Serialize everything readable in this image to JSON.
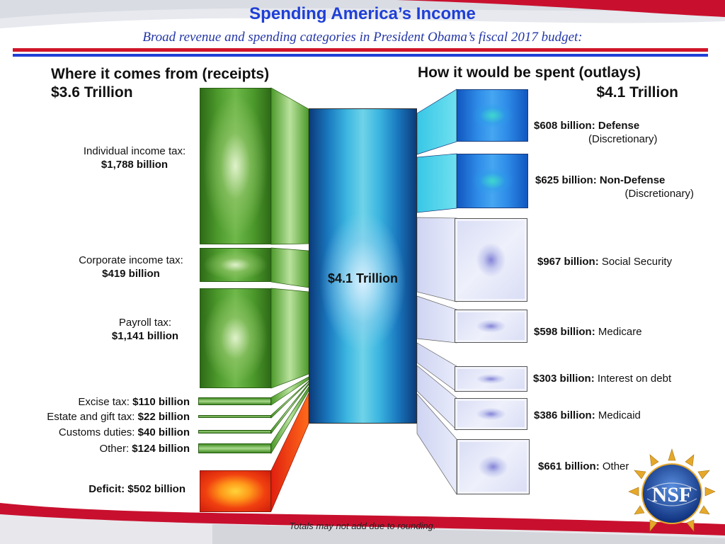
{
  "header": {
    "title": "Spending America’s Income",
    "subtitle": "Broad revenue and spending categories in President Obama’s fiscal 2017 budget:"
  },
  "receipts": {
    "heading": "Where it comes from (receipts)",
    "total": "$3.6 Trillion",
    "items": [
      {
        "label": "Individual income tax:",
        "value": "$1,788 billion"
      },
      {
        "label": "Corporate income tax:",
        "value": "$419 billion"
      },
      {
        "label": "Payroll tax:",
        "value": "$1,141 billion"
      },
      {
        "label": "Excise tax:",
        "value": "$110 billion"
      },
      {
        "label": "Estate and gift tax:",
        "value": "$22 billion"
      },
      {
        "label": "Customs duties:",
        "value": "$40 billion"
      },
      {
        "label": "Other:",
        "value": "$124 billion"
      },
      {
        "label": "Deficit:",
        "value": "$502 billion"
      }
    ]
  },
  "center": {
    "label": "$4.1 Trillion"
  },
  "outlays": {
    "heading": "How it would be spent (outlays)",
    "total": "$4.1 Trillion",
    "items": [
      {
        "value": "$608 billion:",
        "name": "Defense",
        "sub": "(Discretionary)"
      },
      {
        "value": "$625 billion:",
        "name": "Non-Defense",
        "sub": "(Discretionary)"
      },
      {
        "value": "$967 billion:",
        "name": "Social Security"
      },
      {
        "value": "$598 billion:",
        "name": "Medicare"
      },
      {
        "value": "$303 billion:",
        "name": "Interest on debt"
      },
      {
        "value": "$386 billion:",
        "name": "Medicaid"
      },
      {
        "value": "$661 billion:",
        "name": "Other"
      }
    ]
  },
  "footnote": "Totals may not add due to rounding.",
  "logo": {
    "text": "NSF"
  },
  "colors": {
    "title_blue": "#1f3fd6",
    "rule_red": "#d0152a",
    "receipts_green": "#4d9a2c",
    "deficit_red": "#e0301a",
    "center_blue": "#1a7ac0",
    "outlay_blue": "#2f8de8",
    "outlay_lavender": "#d9ddf5"
  }
}
